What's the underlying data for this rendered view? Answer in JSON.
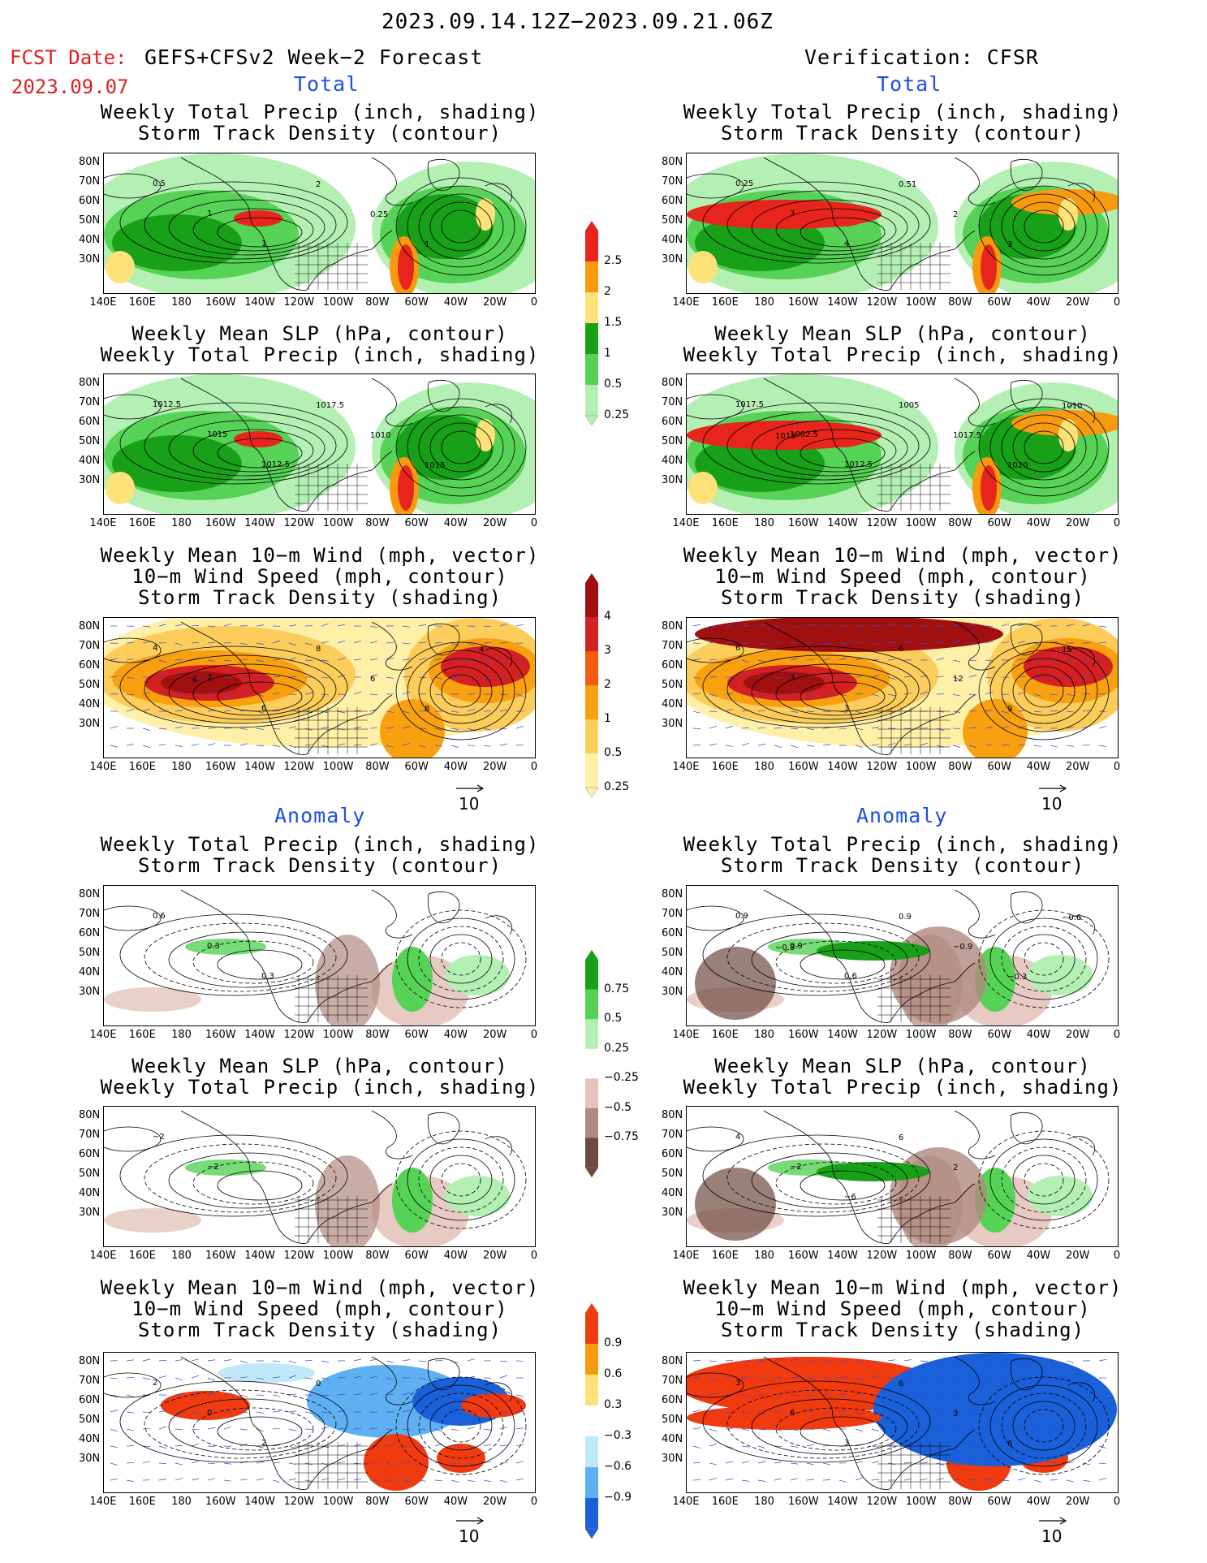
{
  "header": {
    "period": "2023.09.14.12Z−2023.09.21.06Z",
    "fcst_label": "FCST Date:",
    "fcst_date": "2023.09.07",
    "left_model": "GEFS+CFSv2 Week−2 Forecast",
    "right_model": "Verification: CFSR"
  },
  "sections": {
    "total": "Total",
    "anomaly": "Anomaly"
  },
  "titles": {
    "precip_track": [
      "Weekly Total Precip (inch, shading)",
      "Storm Track Density (contour)"
    ],
    "slp_precip": [
      "Weekly Mean SLP (hPa, contour)",
      "Weekly Total Precip (inch, shading)"
    ],
    "wind": [
      "Weekly Mean 10−m Wind (mph, vector)",
      "10−m Wind Speed (mph, contour)",
      "Storm Track Density (shading)"
    ]
  },
  "axes": {
    "lat_labels": [
      "80N",
      "70N",
      "60N",
      "50N",
      "40N",
      "30N"
    ],
    "lon_labels": [
      "140E",
      "160E",
      "180",
      "160W",
      "140W",
      "120W",
      "100W",
      "80W",
      "60W",
      "40W",
      "20W",
      "0"
    ]
  },
  "vector_ref": "10",
  "colorbars": {
    "precip_total": {
      "labels": [
        "2.5",
        "2",
        "1.5",
        "1",
        "0.5",
        "0.25"
      ],
      "colors": [
        "#e8251c",
        "#f89a10",
        "#fde27a",
        "#18a018",
        "#56d256",
        "#b4f0b4"
      ]
    },
    "track_total": {
      "labels": [
        "4",
        "3",
        "2",
        "1",
        "0.5",
        "0.25"
      ],
      "colors": [
        "#a01010",
        "#d42020",
        "#f25c10",
        "#f8a010",
        "#fccd5a",
        "#fff0a8"
      ]
    },
    "precip_anom": {
      "labels": [
        "0.75",
        "0.5",
        "0.25",
        "−0.25",
        "−0.5",
        "−0.75"
      ],
      "colors": [
        "#18a018",
        "#56d256",
        "#b4f0b4",
        "#ffffff",
        "#e4c4bc",
        "#b08a80",
        "#6e4a40"
      ]
    },
    "track_anom": {
      "labels": [
        "0.9",
        "0.6",
        "0.3",
        "−0.3",
        "−0.6",
        "−0.9"
      ],
      "colors": [
        "#f03a10",
        "#f89a10",
        "#fde27a",
        "#ffffff",
        "#bfe8f8",
        "#5eb0f0",
        "#1a60d8"
      ]
    }
  },
  "panel_labels": {
    "p1": [
      "0.5",
      "1",
      "1",
      "2",
      "0.25",
      "1"
    ],
    "p2": [
      "0.25",
      "3",
      "4",
      "0.51",
      "2",
      "3"
    ],
    "p3": [
      "1012.5",
      "1015",
      "1012.5",
      "1017.5",
      "1010",
      "1015"
    ],
    "p4": [
      "1017.5",
      "1002.5",
      "1012.5",
      "1005",
      "1017.5",
      "1020",
      "1010",
      "1015"
    ],
    "p5": [
      "4",
      "2",
      "6",
      "8",
      "6",
      "8",
      "4",
      "6"
    ],
    "p6": [
      "6",
      "3",
      "3",
      "6",
      "12",
      "9",
      "15"
    ],
    "p7": [
      "0.6",
      "0.3",
      "0.3"
    ],
    "p8": [
      "0.9",
      "0.9",
      "0.6",
      "0.9",
      "−0.9",
      "−0.3",
      "−0.6",
      "−0.3"
    ],
    "p9": [
      "−2",
      "−2"
    ],
    "p10": [
      "4",
      "−2",
      "−6",
      "6",
      "2"
    ],
    "p11": [
      "2",
      "0",
      "2",
      "0"
    ],
    "p12": [
      "3",
      "6",
      "3",
      "6",
      "3",
      "6"
    ]
  },
  "chart_data": [
    {
      "type": "heatmap",
      "panel": "forecast total precip + storm track density",
      "title": "Weekly Total Precip (inch, shading) Storm Track Density (contour)",
      "xlim": [
        "140E",
        "0"
      ],
      "ylim": [
        "25N",
        "85N"
      ],
      "shading_levels": [
        0.25,
        0.5,
        1,
        1.5,
        2,
        2.5
      ],
      "contour_labels": [
        0.25,
        0.5,
        1,
        2
      ]
    },
    {
      "type": "heatmap",
      "panel": "verification total precip + storm track density",
      "title": "Weekly Total Precip (inch, shading) Storm Track Density (contour)",
      "xlim": [
        "140E",
        "0"
      ],
      "ylim": [
        "25N",
        "85N"
      ],
      "shading_levels": [
        0.25,
        0.5,
        1,
        1.5,
        2,
        2.5
      ],
      "contour_labels": [
        0.25,
        0.51,
        2,
        3,
        4
      ]
    },
    {
      "type": "heatmap",
      "panel": "forecast SLP + precip",
      "title": "Weekly Mean SLP (hPa, contour) Weekly Total Precip (inch, shading)",
      "contour_labels": [
        1010,
        1012.5,
        1015,
        1017.5
      ]
    },
    {
      "type": "heatmap",
      "panel": "verification SLP + precip",
      "title": "Weekly Mean SLP (hPa, contour) Weekly Total Precip (inch, shading)",
      "contour_labels": [
        1002.5,
        1005,
        1010,
        1012.5,
        1015,
        1017.5,
        1020
      ]
    },
    {
      "type": "heatmap",
      "panel": "forecast 10m wind + storm track density",
      "shading_levels": [
        0.25,
        0.5,
        1,
        2,
        3,
        4
      ],
      "contour_labels": [
        2,
        4,
        6,
        8
      ]
    },
    {
      "type": "heatmap",
      "panel": "verification 10m wind + storm track density",
      "shading_levels": [
        0.25,
        0.5,
        1,
        2,
        3,
        4
      ],
      "contour_labels": [
        3,
        6,
        9,
        12,
        15
      ]
    },
    {
      "type": "heatmap",
      "panel": "forecast precip anomaly",
      "shading_levels": [
        -0.75,
        -0.5,
        -0.25,
        0.25,
        0.5,
        0.75
      ],
      "contour_labels": [
        -0.3,
        0.3,
        0.6
      ]
    },
    {
      "type": "heatmap",
      "panel": "verification precip anomaly",
      "shading_levels": [
        -0.75,
        -0.5,
        -0.25,
        0.25,
        0.5,
        0.75
      ],
      "contour_labels": [
        -0.9,
        -0.6,
        -0.3,
        0.3,
        0.6,
        0.9
      ]
    },
    {
      "type": "heatmap",
      "panel": "forecast SLP anomaly",
      "contour_labels": [
        -2
      ]
    },
    {
      "type": "heatmap",
      "panel": "verification SLP anomaly",
      "contour_labels": [
        -6,
        -2,
        2,
        4,
        6
      ]
    },
    {
      "type": "heatmap",
      "panel": "forecast wind anomaly",
      "shading_levels": [
        -0.9,
        -0.6,
        -0.3,
        0.3,
        0.6,
        0.9
      ],
      "contour_labels": [
        0,
        2
      ]
    },
    {
      "type": "heatmap",
      "panel": "verification wind anomaly",
      "shading_levels": [
        -0.9,
        -0.6,
        -0.3,
        0.3,
        0.6,
        0.9
      ],
      "contour_labels": [
        3,
        6
      ]
    }
  ]
}
